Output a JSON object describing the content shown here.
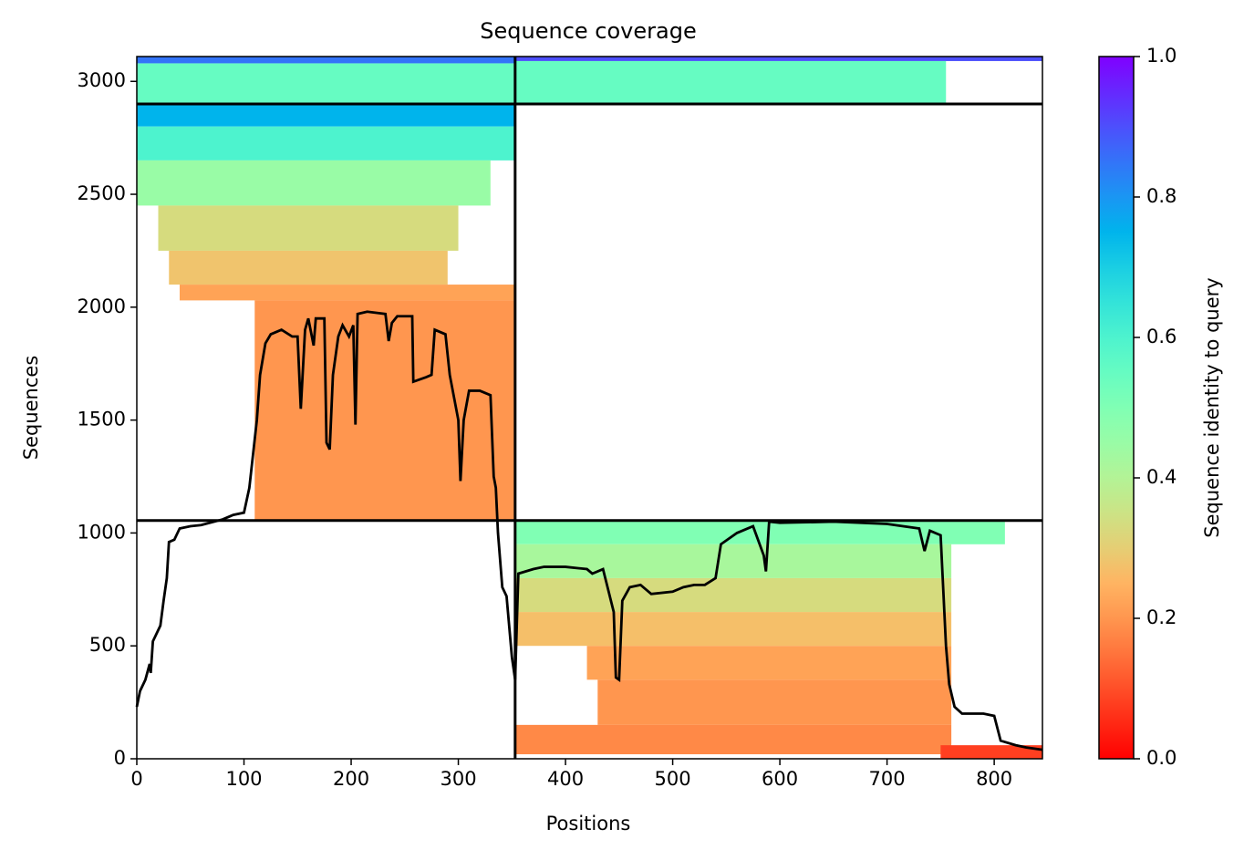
{
  "chart_data": {
    "type": "coverage",
    "title": "Sequence coverage",
    "x_label": "Positions",
    "y_label": "Sequences",
    "colorbar_label": "Sequence identity to query",
    "xlim": [
      0,
      845
    ],
    "xticks": [
      0,
      100,
      200,
      300,
      400,
      500,
      600,
      700,
      800
    ],
    "ylim": [
      0,
      3110
    ],
    "yticks": [
      0,
      500,
      1000,
      1500,
      2000,
      2500,
      3000
    ],
    "clim": [
      0,
      1
    ],
    "cticks": [
      {
        "value": 0,
        "label": "0.0"
      },
      0.2,
      0.4,
      0.6,
      0.8,
      {
        "value": 1,
        "label": "1.0"
      }
    ],
    "colormap": "rainbow_r",
    "bands": [
      {
        "x": [
          0,
          353
        ],
        "y": [
          2900,
          3080
        ],
        "identity": 0.55
      },
      {
        "x": [
          0,
          353
        ],
        "y": [
          3080,
          3110
        ],
        "identity": 0.85
      },
      {
        "x": [
          353,
          845
        ],
        "y": [
          3090,
          3110
        ],
        "identity": 0.9
      },
      {
        "x": [
          353,
          755
        ],
        "y": [
          2900,
          3090
        ],
        "identity": 0.55
      },
      {
        "x": [
          0,
          353
        ],
        "y": [
          2800,
          2900
        ],
        "identity": 0.75
      },
      {
        "x": [
          0,
          353
        ],
        "y": [
          2650,
          2800
        ],
        "identity": 0.6
      },
      {
        "x": [
          0,
          330
        ],
        "y": [
          2450,
          2650
        ],
        "identity": 0.45
      },
      {
        "x": [
          20,
          300
        ],
        "y": [
          2250,
          2450
        ],
        "identity": 0.33
      },
      {
        "x": [
          30,
          290
        ],
        "y": [
          2100,
          2250
        ],
        "identity": 0.28
      },
      {
        "x": [
          40,
          353
        ],
        "y": [
          2030,
          2100
        ],
        "identity": 0.22
      },
      {
        "x": [
          110,
          353
        ],
        "y": [
          1055,
          2030
        ],
        "identity": 0.2
      },
      {
        "x": [
          353,
          810
        ],
        "y": [
          950,
          1055
        ],
        "identity": 0.5
      },
      {
        "x": [
          353,
          760
        ],
        "y": [
          800,
          950
        ],
        "identity": 0.42
      },
      {
        "x": [
          353,
          760
        ],
        "y": [
          650,
          800
        ],
        "identity": 0.33
      },
      {
        "x": [
          353,
          760
        ],
        "y": [
          500,
          650
        ],
        "identity": 0.27
      },
      {
        "x": [
          420,
          760
        ],
        "y": [
          350,
          500
        ],
        "identity": 0.22
      },
      {
        "x": [
          430,
          760
        ],
        "y": [
          150,
          350
        ],
        "identity": 0.2
      },
      {
        "x": [
          353,
          760
        ],
        "y": [
          20,
          150
        ],
        "identity": 0.18
      },
      {
        "x": [
          750,
          845
        ],
        "y": [
          0,
          60
        ],
        "identity": 0.08
      }
    ],
    "chain_boundaries": {
      "x": [
        353
      ],
      "y": [
        1055,
        2900
      ]
    },
    "coverage": {
      "x": [
        0,
        3,
        8,
        12,
        13,
        15,
        22,
        25,
        28,
        30,
        35,
        40,
        50,
        60,
        80,
        90,
        100,
        105,
        112,
        115,
        120,
        125,
        135,
        145,
        150,
        153,
        157,
        160,
        165,
        167,
        175,
        177,
        180,
        183,
        188,
        192,
        198,
        202,
        204,
        206,
        215,
        232,
        235,
        238,
        243,
        257,
        258,
        270,
        275,
        278,
        288,
        292,
        300,
        302,
        305,
        310,
        320,
        330,
        333,
        335,
        337,
        341,
        345,
        350,
        353,
        356,
        370,
        380,
        400,
        420,
        425,
        435,
        445,
        447,
        450,
        453,
        460,
        470,
        480,
        500,
        510,
        520,
        530,
        540,
        545,
        560,
        575,
        585,
        587,
        590,
        600,
        650,
        700,
        730,
        735,
        740,
        750,
        755,
        758,
        763,
        770,
        790,
        800,
        806,
        820,
        830,
        845
      ],
      "y": [
        230,
        300,
        350,
        420,
        380,
        520,
        590,
        700,
        800,
        960,
        970,
        1020,
        1030,
        1035,
        1060,
        1080,
        1090,
        1200,
        1500,
        1700,
        1840,
        1880,
        1900,
        1870,
        1870,
        1550,
        1900,
        1950,
        1830,
        1950,
        1950,
        1400,
        1370,
        1700,
        1870,
        1920,
        1870,
        1920,
        1480,
        1970,
        1980,
        1970,
        1850,
        1930,
        1960,
        1960,
        1670,
        1690,
        1700,
        1900,
        1880,
        1700,
        1500,
        1230,
        1500,
        1630,
        1630,
        1610,
        1250,
        1200,
        1000,
        760,
        720,
        450,
        350,
        820,
        840,
        850,
        850,
        840,
        820,
        840,
        650,
        360,
        350,
        700,
        760,
        770,
        730,
        740,
        760,
        770,
        770,
        800,
        950,
        1000,
        1030,
        900,
        830,
        1050,
        1045,
        1050,
        1040,
        1020,
        920,
        1010,
        990,
        500,
        330,
        230,
        200,
        200,
        190,
        80,
        60,
        50,
        40
      ]
    }
  }
}
